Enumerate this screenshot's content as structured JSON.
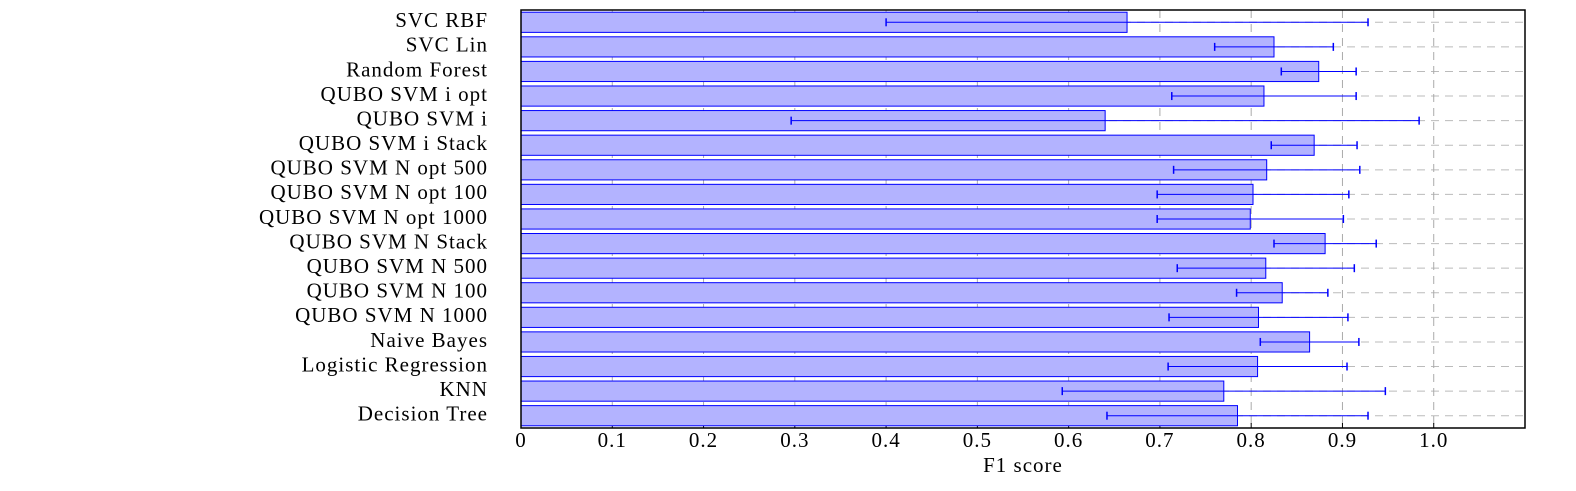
{
  "chart_data": {
    "type": "barh_error",
    "xlabel": "F1 score",
    "categories": [
      "SVC RBF",
      "SVC Lin",
      "Random Forest",
      "QUBO SVM i opt",
      "QUBO SVM i",
      "QUBO SVM i Stack",
      "QUBO SVM N opt 500",
      "QUBO SVM N opt 100",
      "QUBO SVM N opt 1000",
      "QUBO SVM N Stack",
      "QUBO SVM N 500",
      "QUBO SVM N 100",
      "QUBO SVM N 1000",
      "Naive Bayes",
      "Logistic Regression",
      "KNN",
      "Decision Tree"
    ],
    "values": [
      0.664,
      0.825,
      0.874,
      0.814,
      0.64,
      0.869,
      0.817,
      0.802,
      0.799,
      0.881,
      0.816,
      0.834,
      0.808,
      0.864,
      0.807,
      0.77,
      0.785
    ],
    "errors": [
      0.264,
      0.065,
      0.041,
      0.101,
      0.344,
      0.047,
      0.102,
      0.105,
      0.102,
      0.056,
      0.097,
      0.05,
      0.098,
      0.054,
      0.098,
      0.177,
      0.143
    ],
    "color": "#b3b3ff",
    "edge_color": "#0000ff",
    "xlim": [
      0,
      1.1
    ],
    "xticks": [
      0,
      0.1,
      0.2,
      0.3,
      0.4,
      0.5,
      0.6,
      0.7,
      0.8,
      0.9,
      {
        "value": 1,
        "label": "1.0"
      }
    ],
    "grid": true
  }
}
